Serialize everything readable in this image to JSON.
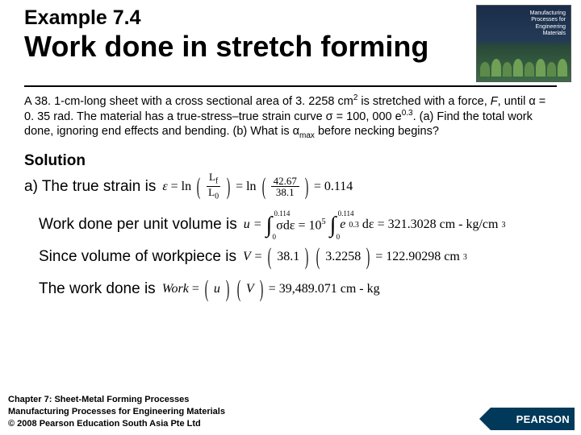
{
  "header": {
    "example_label": "Example 7.4",
    "title": "Work done in stretch forming"
  },
  "problem": {
    "p1a": "A 38. 1-cm-long sheet with a cross sectional area of 3. 2258 cm",
    "p1a_sup": "2",
    "p1b": " is stretched with a force, ",
    "p1b_F": "F",
    "p1c": ", until α = 0. 35 rad. The material has a true-stress–true strain curve σ = 100, 000 e",
    "p1c_sup": "0.3",
    "p1d": ". (a) Find the total work done, ignoring end effects and bending. (b) What is α",
    "p1d_sub": "max",
    "p1e": " before necking begins?"
  },
  "solution": {
    "head": "Solution",
    "a_label": "a) The true strain is",
    "eq1": {
      "eps": "ε",
      "eqs": "=",
      "ln": "ln",
      "Lf": "L",
      "Lf_sub": "f",
      "L0": "L",
      "L0_sub": "0",
      "n1": "42.67",
      "n2": "38.1",
      "res": "= 0.114"
    },
    "line2": "Work done per unit volume is",
    "eq2": {
      "u": "u =",
      "ub": "0.114",
      "lb": "0",
      "sig": "σdε = 10",
      "sig_sup": "5",
      "e": "e",
      "e_sup": "0.3",
      "de": "dε = 321.3028 cm - kg/cm",
      "de_sup": "3"
    },
    "line3": "Since volume of workpiece is",
    "eq3": {
      "v": "V =",
      "a": "38.1",
      "b": "3.2258",
      "res": "= 122.90298 cm",
      "res_sup": "3"
    },
    "line4": "The work done is",
    "eq4": {
      "w": "Work",
      "eq": "=",
      "u": "u",
      "v": "V",
      "res": "= 39,489.071 cm - kg"
    }
  },
  "footer": {
    "l1": "Chapter 7: Sheet-Metal Forming Processes",
    "l2": "Manufacturing Processes for Engineering Materials",
    "l3": "© 2008 Pearson Education South Asia Pte Ltd",
    "brand": "PEARSON"
  },
  "colors": {
    "text": "#000000",
    "pearson_bg": "#00395a",
    "bg": "#ffffff"
  }
}
